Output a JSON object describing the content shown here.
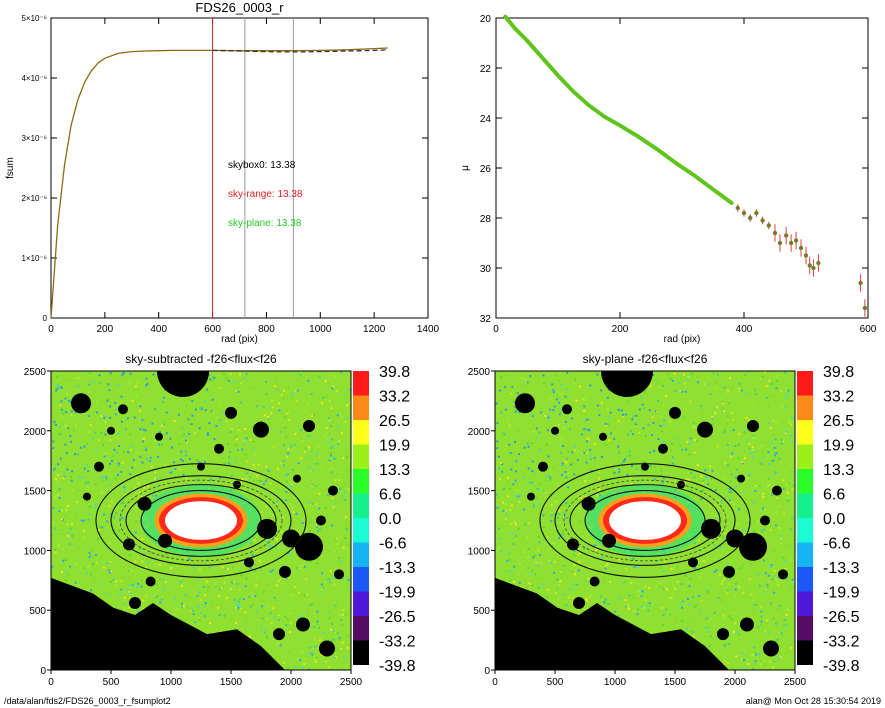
{
  "footer": {
    "path": "/data/alan/fds2/FDS26_0003_r_fsumplot2",
    "stamp": "alan@  Mon Oct 28 15:30:54 2019"
  },
  "chart_data": [
    {
      "type": "line",
      "title": "FDS26_0003_r",
      "xlabel": "rad (pix)",
      "ylabel": "fsum",
      "xlim": [
        0,
        1400
      ],
      "ylim": [
        0,
        5e-06
      ],
      "x_ticks": [
        "0",
        "200",
        "400",
        "600",
        "800",
        "1000",
        "1200",
        "1400"
      ],
      "y_ticks": [
        "0",
        "1×10⁻⁶",
        "2×10⁻⁶",
        "3×10⁻⁶",
        "4×10⁻⁶",
        "5×10⁻⁶"
      ],
      "series": [
        {
          "color": "#8b6a14",
          "style": "solid",
          "x": [
            0,
            25,
            50,
            75,
            100,
            125,
            150,
            175,
            200,
            250,
            300,
            350,
            400,
            450,
            500,
            600,
            700,
            800,
            900,
            1000,
            1100,
            1200,
            1250
          ],
          "y": [
            0,
            1.55e-06,
            2.55e-06,
            3.22e-06,
            3.64e-06,
            3.93e-06,
            4.12e-06,
            4.25e-06,
            4.33e-06,
            4.41e-06,
            4.44e-06,
            4.45e-06,
            4.455e-06,
            4.46e-06,
            4.46e-06,
            4.46e-06,
            4.455e-06,
            4.455e-06,
            4.455e-06,
            4.46e-06,
            4.47e-06,
            4.49e-06,
            4.5e-06
          ]
        },
        {
          "color": "#333333",
          "style": "dashed",
          "x": [
            600,
            700,
            800,
            900,
            1000,
            1100,
            1200,
            1250
          ],
          "y": [
            4.46e-06,
            4.45e-06,
            4.44e-06,
            4.435e-06,
            4.44e-06,
            4.45e-06,
            4.46e-06,
            4.47e-06
          ]
        }
      ],
      "vlines": [
        {
          "x": 600,
          "color": "#e02020"
        },
        {
          "x": 720,
          "color": "#999999"
        },
        {
          "x": 900,
          "color": "#999999"
        }
      ],
      "annotations": [
        {
          "text": "skybox0: 13.38",
          "color": "#000000"
        },
        {
          "text": "sky-range: 13.38",
          "color": "#e02020"
        },
        {
          "text": "sky-plane: 13.38",
          "color": "#22cc22"
        }
      ]
    },
    {
      "type": "scatter",
      "title": "",
      "xlabel": "rad (pix)",
      "ylabel": "μ",
      "xlim": [
        0,
        600
      ],
      "ylim": [
        32,
        20
      ],
      "y_inverted": true,
      "x_ticks": [
        "0",
        "200",
        "400",
        "600"
      ],
      "y_ticks": [
        "20",
        "22",
        "24",
        "26",
        "28",
        "30",
        "32"
      ],
      "profile": {
        "color": "#5fc41c",
        "x": [
          15,
          30,
          50,
          75,
          100,
          125,
          150,
          175,
          200,
          230,
          260,
          290,
          320,
          350,
          380
        ],
        "y": [
          19.95,
          20.4,
          20.9,
          21.6,
          22.3,
          22.95,
          23.5,
          23.95,
          24.3,
          24.75,
          25.25,
          25.8,
          26.3,
          26.85,
          27.4
        ]
      },
      "points": [
        {
          "x": 390,
          "y": 27.6
        },
        {
          "x": 400,
          "y": 27.8
        },
        {
          "x": 410,
          "y": 28.0
        },
        {
          "x": 420,
          "y": 27.8
        },
        {
          "x": 430,
          "y": 28.1
        },
        {
          "x": 440,
          "y": 28.3
        },
        {
          "x": 450,
          "y": 28.6
        },
        {
          "x": 458,
          "y": 29.0
        },
        {
          "x": 468,
          "y": 28.7
        },
        {
          "x": 476,
          "y": 29.0
        },
        {
          "x": 484,
          "y": 28.9
        },
        {
          "x": 492,
          "y": 29.2
        },
        {
          "x": 500,
          "y": 29.5
        },
        {
          "x": 506,
          "y": 29.9
        },
        {
          "x": 512,
          "y": 30.0
        },
        {
          "x": 520,
          "y": 29.8
        },
        {
          "x": 588,
          "y": 30.6
        },
        {
          "x": 595,
          "y": 31.6
        }
      ]
    },
    {
      "type": "heatmap",
      "title": "sky-subtracted -f26<flux<f26",
      "xlim": [
        0,
        2500
      ],
      "ylim": [
        0,
        2500
      ],
      "x_ticks": [
        "0",
        "500",
        "1000",
        "1500",
        "2000",
        "2500"
      ],
      "y_ticks": [
        "0",
        "500",
        "1000",
        "1500",
        "2000",
        "2500"
      ],
      "colorbar": {
        "labels": [
          "39.8",
          "33.2",
          "26.5",
          "19.9",
          "13.3",
          "6.6",
          "0.0",
          "-6.6",
          "-13.3",
          "-19.9",
          "-26.5",
          "-33.2",
          "-39.8"
        ],
        "colors": [
          "#ff1a1a",
          "#ff8a1a",
          "#ffff1a",
          "#9cf01a",
          "#2aff2a",
          "#16f08c",
          "#1cfcd4",
          "#17b4f5",
          "#1b58f5",
          "#4f18d8",
          "#540c64",
          "#000000"
        ]
      }
    },
    {
      "type": "heatmap",
      "title": "sky-plane -f26<flux<f26",
      "xlim": [
        0,
        2500
      ],
      "ylim": [
        0,
        2500
      ],
      "x_ticks": [
        "0",
        "500",
        "1000",
        "1500",
        "2000",
        "2500"
      ],
      "y_ticks": [
        "0",
        "500",
        "1000",
        "1500",
        "2000",
        "2500"
      ],
      "colorbar": {
        "labels": [
          "39.8",
          "33.2",
          "26.5",
          "19.9",
          "13.3",
          "6.6",
          "0.0",
          "-6.6",
          "-13.3",
          "-19.9",
          "-26.5",
          "-33.2",
          "-39.8"
        ],
        "colors": [
          "#ff1a1a",
          "#ff8a1a",
          "#ffff1a",
          "#9cf01a",
          "#2aff2a",
          "#16f08c",
          "#1cfcd4",
          "#17b4f5",
          "#1b58f5",
          "#4f18d8",
          "#540c64",
          "#000000"
        ]
      }
    }
  ]
}
